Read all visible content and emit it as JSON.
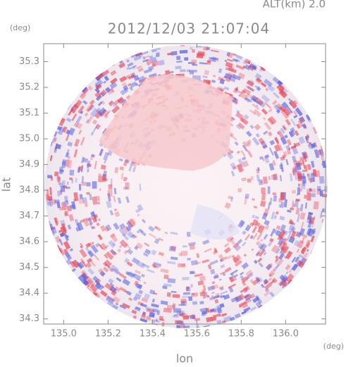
{
  "chart_data": {
    "type": "heatmap",
    "title": "2012/12/03 21:07:04",
    "subtitle": "ALT(km) 2.0",
    "x_label": "lon",
    "y_label": "lat",
    "x_unit": "(deg)",
    "y_unit": "(deg)",
    "xlim": [
      134.91,
      136.18
    ],
    "ylim": [
      34.28,
      35.37
    ],
    "xticks": [
      {
        "value": 135.0,
        "label": "135.0"
      },
      135.2,
      135.4,
      135.6,
      135.8,
      {
        "value": 136.0,
        "label": "136.0"
      }
    ],
    "yticks": [
      34.3,
      34.4,
      34.5,
      34.6,
      34.7,
      34.8,
      34.9,
      {
        "value": 35.0,
        "label": "35.0"
      },
      35.1,
      35.2,
      35.3
    ]
  }
}
